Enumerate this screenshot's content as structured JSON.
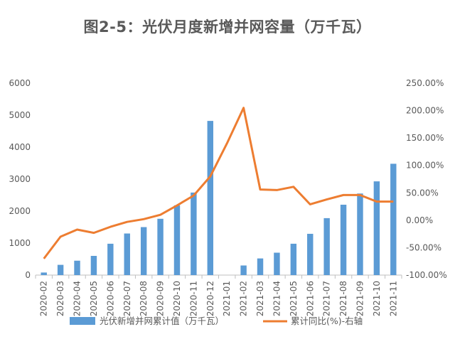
{
  "chart_data": {
    "type": "bar+line",
    "title": "图2-5：光伏月度新增并网容量（万千瓦）",
    "categories": [
      "2020-02",
      "2020-03",
      "2020-04",
      "2020-05",
      "2020-06",
      "2020-07",
      "2020-08",
      "2020-09",
      "2020-10",
      "2020-11",
      "2020-12",
      "2021-01",
      "2021-02",
      "2021-03",
      "2021-04",
      "2021-05",
      "2021-06",
      "2021-07",
      "2021-08",
      "2021-09",
      "2021-10",
      "2021-11"
    ],
    "series": [
      {
        "name": "光伏新增并网累计值（万千瓦）",
        "type": "bar",
        "axis": "left",
        "color": "#5B9BD5",
        "values": [
          80,
          320,
          450,
          600,
          980,
          1300,
          1500,
          1760,
          2180,
          2580,
          4820,
          null,
          300,
          520,
          700,
          980,
          1290,
          1780,
          2200,
          2550,
          2930,
          3480
        ]
      },
      {
        "name": "累计同比(%)-右轴",
        "type": "line",
        "axis": "right",
        "color": "#ED7D31",
        "values": [
          -70,
          -30,
          -17,
          -23,
          -12,
          -3,
          2,
          10,
          27,
          45,
          80,
          140,
          205,
          56,
          55,
          61,
          29,
          38,
          46,
          46,
          34,
          34
        ]
      }
    ],
    "y_left": {
      "min": 0,
      "max": 6000,
      "step": 1000,
      "ticks": [
        "0",
        "1000",
        "2000",
        "3000",
        "4000",
        "5000",
        "6000"
      ]
    },
    "y_right": {
      "min": -100,
      "max": 250,
      "step": 50,
      "ticks": [
        "-100.00%",
        "-50.00%",
        "0.00%",
        "50.00%",
        "100.00%",
        "150.00%",
        "200.00%",
        "250.00%"
      ]
    },
    "grid": false,
    "legend_position": "bottom"
  }
}
